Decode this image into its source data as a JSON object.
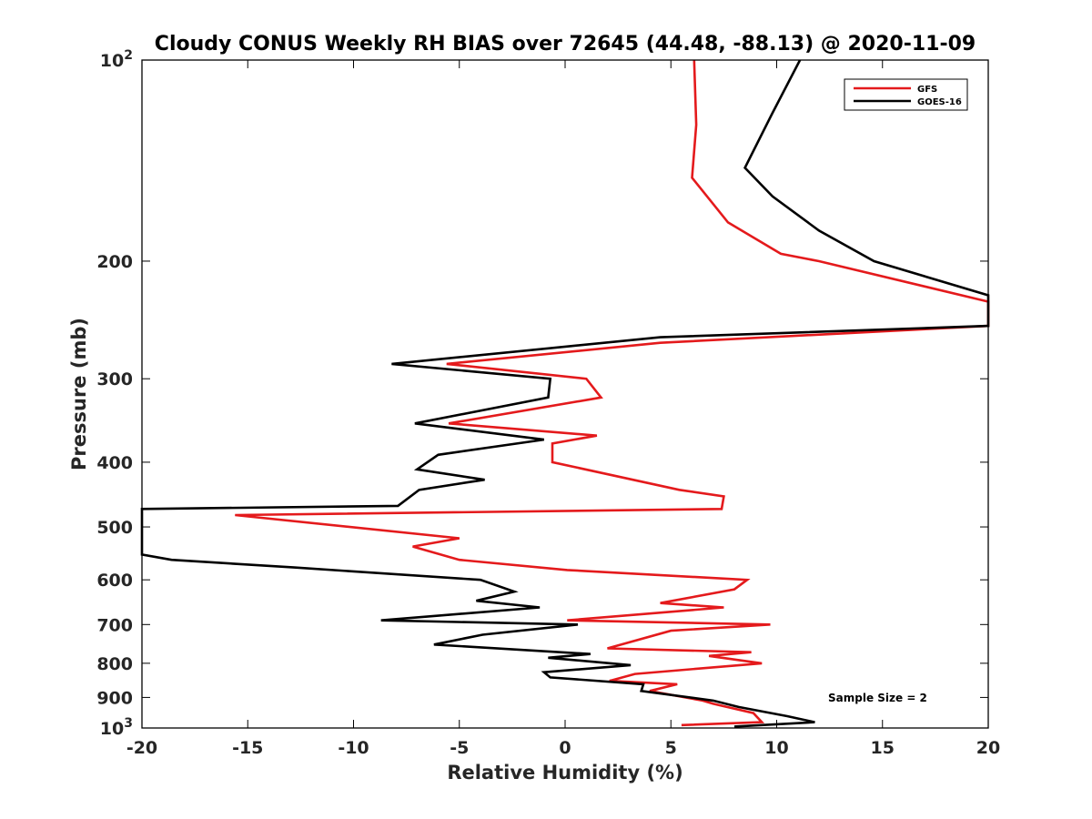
{
  "chart_data": {
    "type": "line",
    "title": "Cloudy CONUS Weekly RH BIAS over 72645 (44.48, -88.13) @ 2020-11-09",
    "xlabel": "Relative Humidity (%)",
    "ylabel": "Pressure (mb)",
    "xlim": [
      -20,
      20
    ],
    "ylim": [
      100,
      1000
    ],
    "y_scale": "log",
    "y_reversed": true,
    "grid": false,
    "legend_position": "top-right",
    "x_ticks": [
      "-20",
      "-15",
      "-10",
      "-5",
      "0",
      "5",
      "10",
      "15",
      "20"
    ],
    "y_ticks": [
      {
        "value": 200,
        "label": "200"
      },
      {
        "value": 300,
        "label": "300"
      },
      {
        "value": 400,
        "label": "400"
      },
      {
        "value": 500,
        "label": "500"
      },
      {
        "value": 600,
        "label": "600"
      },
      {
        "value": 700,
        "label": "700"
      },
      {
        "value": 800,
        "label": "800"
      },
      {
        "value": 900,
        "label": "900"
      }
    ],
    "y_tick_ends": [
      {
        "value": 100,
        "base": "10",
        "exp": "2"
      },
      {
        "value": 1000,
        "base": "10",
        "exp": "3"
      }
    ],
    "annotation": "Sample Size = 2",
    "series": [
      {
        "name": "GFS",
        "color": "#e41a1c",
        "points": [
          [
            6.1,
            100
          ],
          [
            6.2,
            125
          ],
          [
            6.0,
            150
          ],
          [
            7.7,
            175
          ],
          [
            10.2,
            195
          ],
          [
            12.0,
            200
          ],
          [
            20,
            230
          ],
          [
            20,
            250
          ],
          [
            4.5,
            265
          ],
          [
            -5.6,
            285
          ],
          [
            1.0,
            300
          ],
          [
            1.7,
            320
          ],
          [
            -5.5,
            350
          ],
          [
            1.5,
            365
          ],
          [
            -0.6,
            375
          ],
          [
            -0.6,
            400
          ],
          [
            5.4,
            440
          ],
          [
            7.5,
            450
          ],
          [
            7.4,
            470
          ],
          [
            -15.6,
            480
          ],
          [
            -5.0,
            520
          ],
          [
            -7.2,
            535
          ],
          [
            -5.0,
            560
          ],
          [
            0.1,
            580
          ],
          [
            8.6,
            600
          ],
          [
            8.0,
            620
          ],
          [
            4.5,
            650
          ],
          [
            7.5,
            660
          ],
          [
            0.1,
            690
          ],
          [
            9.7,
            700
          ],
          [
            5.0,
            715
          ],
          [
            2.0,
            760
          ],
          [
            8.8,
            770
          ],
          [
            6.8,
            780
          ],
          [
            9.3,
            800
          ],
          [
            3.3,
            830
          ],
          [
            2.1,
            850
          ],
          [
            5.3,
            860
          ],
          [
            4.0,
            880
          ],
          [
            6.5,
            910
          ],
          [
            7.0,
            920
          ],
          [
            8.9,
            950
          ],
          [
            9.3,
            980
          ],
          [
            5.5,
            990
          ]
        ]
      },
      {
        "name": "GOES-16",
        "color": "#000000",
        "points": [
          [
            11.1,
            100
          ],
          [
            9.8,
            120
          ],
          [
            8.5,
            145
          ],
          [
            9.8,
            160
          ],
          [
            12.0,
            180
          ],
          [
            14.6,
            200
          ],
          [
            20,
            225
          ],
          [
            20,
            250
          ],
          [
            4.5,
            260
          ],
          [
            -8.2,
            285
          ],
          [
            -0.7,
            300
          ],
          [
            -0.8,
            320
          ],
          [
            -7.1,
            350
          ],
          [
            -1.0,
            370
          ],
          [
            -6.0,
            390
          ],
          [
            -7.0,
            410
          ],
          [
            -3.8,
            425
          ],
          [
            -6.9,
            440
          ],
          [
            -7.9,
            465
          ],
          [
            -20,
            470
          ],
          [
            -20,
            550
          ],
          [
            -18.6,
            560
          ],
          [
            -12.8,
            575
          ],
          [
            -4.0,
            600
          ],
          [
            -2.4,
            625
          ],
          [
            -4.2,
            645
          ],
          [
            -1.2,
            660
          ],
          [
            -8.7,
            690
          ],
          [
            0.6,
            700
          ],
          [
            -3.9,
            725
          ],
          [
            -6.2,
            750
          ],
          [
            1.2,
            775
          ],
          [
            -0.8,
            785
          ],
          [
            3.1,
            805
          ],
          [
            -1.0,
            825
          ],
          [
            -0.7,
            840
          ],
          [
            3.7,
            860
          ],
          [
            3.6,
            880
          ],
          [
            7.0,
            910
          ],
          [
            8.2,
            930
          ],
          [
            10.5,
            960
          ],
          [
            11.8,
            980
          ],
          [
            8.0,
            995
          ]
        ]
      }
    ]
  }
}
